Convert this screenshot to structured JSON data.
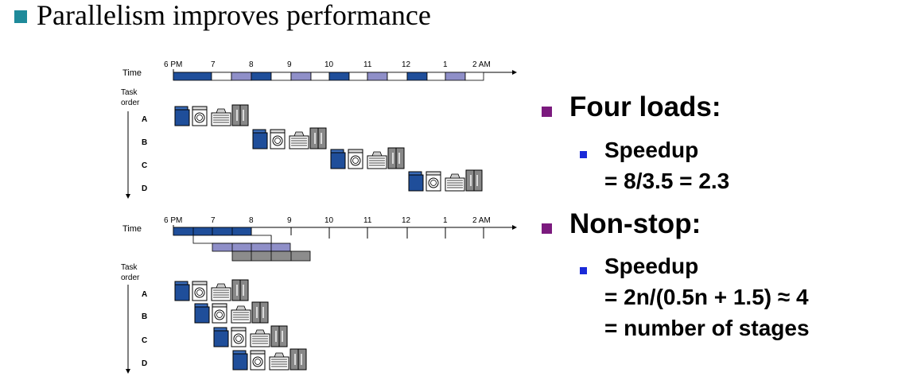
{
  "title": "Parallelism improves performance",
  "colors": {
    "title_bullet": "#1e8a9a",
    "l1_bullet": "#7b1a7e",
    "l2_bullet": "#1a2ad8",
    "washer": "#1f4e9a",
    "dryer_light": "#8f8fc8",
    "gray": "#8c8c8c"
  },
  "timeline": {
    "time_label": "Time",
    "task_order_line1": "Task",
    "task_order_line2": "order",
    "hours": [
      "6 PM",
      "7",
      "8",
      "9",
      "10",
      "11",
      "12",
      "1",
      "2 AM"
    ],
    "tasks": [
      "A",
      "B",
      "C",
      "D"
    ]
  },
  "points": [
    {
      "heading": "Four loads:",
      "sub": [
        "Speedup",
        "= 8/3.5 = 2.3"
      ]
    },
    {
      "heading": "Non-stop:",
      "sub": [
        "Speedup",
        "= 2n/(0.5n + 1.5) ≈ 4",
        "= number of stages"
      ]
    }
  ]
}
